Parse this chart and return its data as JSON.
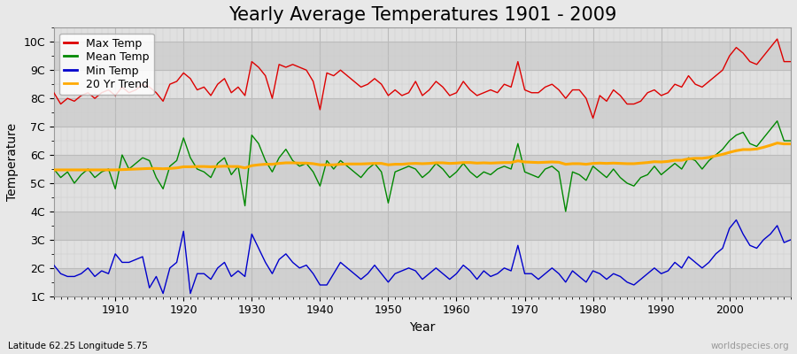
{
  "title": "Yearly Average Temperatures 1901 - 2009",
  "xlabel": "Year",
  "ylabel": "Temperature",
  "lat_lon_label": "Latitude 62.25 Longitude 5.75",
  "watermark": "worldspecies.org",
  "years": [
    1901,
    1902,
    1903,
    1904,
    1905,
    1906,
    1907,
    1908,
    1909,
    1910,
    1911,
    1912,
    1913,
    1914,
    1915,
    1916,
    1917,
    1918,
    1919,
    1920,
    1921,
    1922,
    1923,
    1924,
    1925,
    1926,
    1927,
    1928,
    1929,
    1930,
    1931,
    1932,
    1933,
    1934,
    1935,
    1936,
    1937,
    1938,
    1939,
    1940,
    1941,
    1942,
    1943,
    1944,
    1945,
    1946,
    1947,
    1948,
    1949,
    1950,
    1951,
    1952,
    1953,
    1954,
    1955,
    1956,
    1957,
    1958,
    1959,
    1960,
    1961,
    1962,
    1963,
    1964,
    1965,
    1966,
    1967,
    1968,
    1969,
    1970,
    1971,
    1972,
    1973,
    1974,
    1975,
    1976,
    1977,
    1978,
    1979,
    1980,
    1981,
    1982,
    1983,
    1984,
    1985,
    1986,
    1987,
    1988,
    1989,
    1990,
    1991,
    1992,
    1993,
    1994,
    1995,
    1996,
    1997,
    1998,
    1999,
    2000,
    2001,
    2002,
    2003,
    2004,
    2005,
    2006,
    2007,
    2008,
    2009
  ],
  "max_temp": [
    8.2,
    7.8,
    8.0,
    7.9,
    8.1,
    8.2,
    8.0,
    8.2,
    8.3,
    8.1,
    8.4,
    8.2,
    8.3,
    8.5,
    8.4,
    8.2,
    7.9,
    8.5,
    8.6,
    8.9,
    8.7,
    8.3,
    8.4,
    8.1,
    8.5,
    8.7,
    8.2,
    8.4,
    8.1,
    9.3,
    9.1,
    8.8,
    8.0,
    9.2,
    9.1,
    9.2,
    9.1,
    9.0,
    8.6,
    7.6,
    8.9,
    8.8,
    9.0,
    8.8,
    8.6,
    8.4,
    8.5,
    8.7,
    8.5,
    8.1,
    8.3,
    8.1,
    8.2,
    8.6,
    8.1,
    8.3,
    8.6,
    8.4,
    8.1,
    8.2,
    8.6,
    8.3,
    8.1,
    8.2,
    8.3,
    8.2,
    8.5,
    8.4,
    9.3,
    8.3,
    8.2,
    8.2,
    8.4,
    8.5,
    8.3,
    8.0,
    8.3,
    8.3,
    8.0,
    7.3,
    8.1,
    7.9,
    8.3,
    8.1,
    7.8,
    7.8,
    7.9,
    8.2,
    8.3,
    8.1,
    8.2,
    8.5,
    8.4,
    8.8,
    8.5,
    8.4,
    8.6,
    8.8,
    9.0,
    9.5,
    9.8,
    9.6,
    9.3,
    9.2,
    9.5,
    9.8,
    10.1,
    9.3,
    9.3
  ],
  "mean_temp": [
    5.5,
    5.2,
    5.4,
    5.0,
    5.3,
    5.5,
    5.2,
    5.4,
    5.5,
    4.8,
    6.0,
    5.5,
    5.7,
    5.9,
    5.8,
    5.2,
    4.8,
    5.6,
    5.8,
    6.6,
    5.9,
    5.5,
    5.4,
    5.2,
    5.7,
    5.9,
    5.3,
    5.6,
    4.2,
    6.7,
    6.4,
    5.8,
    5.4,
    5.9,
    6.2,
    5.8,
    5.6,
    5.7,
    5.4,
    4.9,
    5.8,
    5.5,
    5.8,
    5.6,
    5.4,
    5.2,
    5.5,
    5.7,
    5.4,
    4.3,
    5.4,
    5.5,
    5.6,
    5.5,
    5.2,
    5.4,
    5.7,
    5.5,
    5.2,
    5.4,
    5.7,
    5.4,
    5.2,
    5.4,
    5.3,
    5.5,
    5.6,
    5.5,
    6.4,
    5.4,
    5.3,
    5.2,
    5.5,
    5.6,
    5.4,
    4.0,
    5.4,
    5.3,
    5.1,
    5.6,
    5.4,
    5.2,
    5.5,
    5.2,
    5.0,
    4.9,
    5.2,
    5.3,
    5.6,
    5.3,
    5.5,
    5.7,
    5.5,
    5.9,
    5.8,
    5.5,
    5.8,
    6.0,
    6.2,
    6.5,
    6.7,
    6.8,
    6.4,
    6.3,
    6.6,
    6.9,
    7.2,
    6.5,
    6.5
  ],
  "min_temp": [
    2.1,
    1.8,
    1.7,
    1.7,
    1.8,
    2.0,
    1.7,
    1.9,
    1.8,
    2.5,
    2.2,
    2.2,
    2.3,
    2.4,
    1.3,
    1.7,
    1.1,
    2.0,
    2.2,
    3.3,
    1.1,
    1.8,
    1.8,
    1.6,
    2.0,
    2.2,
    1.7,
    1.9,
    1.7,
    3.2,
    2.7,
    2.2,
    1.8,
    2.3,
    2.5,
    2.2,
    2.0,
    2.1,
    1.8,
    1.4,
    1.4,
    1.8,
    2.2,
    2.0,
    1.8,
    1.6,
    1.8,
    2.1,
    1.8,
    1.5,
    1.8,
    1.9,
    2.0,
    1.9,
    1.6,
    1.8,
    2.0,
    1.8,
    1.6,
    1.8,
    2.1,
    1.9,
    1.6,
    1.9,
    1.7,
    1.8,
    2.0,
    1.9,
    2.8,
    1.8,
    1.8,
    1.6,
    1.8,
    2.0,
    1.8,
    1.5,
    1.9,
    1.7,
    1.5,
    1.9,
    1.8,
    1.6,
    1.8,
    1.7,
    1.5,
    1.4,
    1.6,
    1.8,
    2.0,
    1.8,
    1.9,
    2.2,
    2.0,
    2.4,
    2.2,
    2.0,
    2.2,
    2.5,
    2.7,
    3.4,
    3.7,
    3.2,
    2.8,
    2.7,
    3.0,
    3.2,
    3.5,
    2.9,
    3.0
  ],
  "trend_vals": [
    5.47,
    5.47,
    5.47,
    5.47,
    5.47,
    5.47,
    5.47,
    5.47,
    5.47,
    5.47,
    5.48,
    5.49,
    5.5,
    5.51,
    5.52,
    5.52,
    5.51,
    5.52,
    5.54,
    5.58,
    5.58,
    5.59,
    5.59,
    5.58,
    5.59,
    5.6,
    5.59,
    5.59,
    5.54,
    5.62,
    5.65,
    5.67,
    5.67,
    5.7,
    5.72,
    5.72,
    5.71,
    5.71,
    5.69,
    5.65,
    5.65,
    5.65,
    5.67,
    5.68,
    5.68,
    5.68,
    5.69,
    5.7,
    5.7,
    5.65,
    5.67,
    5.67,
    5.69,
    5.7,
    5.69,
    5.7,
    5.72,
    5.72,
    5.7,
    5.71,
    5.73,
    5.73,
    5.71,
    5.72,
    5.71,
    5.72,
    5.73,
    5.73,
    5.79,
    5.75,
    5.74,
    5.73,
    5.74,
    5.75,
    5.74,
    5.67,
    5.69,
    5.69,
    5.67,
    5.7,
    5.71,
    5.7,
    5.71,
    5.7,
    5.69,
    5.69,
    5.71,
    5.73,
    5.76,
    5.75,
    5.77,
    5.81,
    5.81,
    5.86,
    5.88,
    5.88,
    5.91,
    5.97,
    6.02,
    6.09,
    6.15,
    6.19,
    6.19,
    6.21,
    6.27,
    6.34,
    6.42,
    6.39,
    6.39
  ],
  "colors": {
    "max": "#dd0000",
    "mean": "#008800",
    "min": "#0000cc",
    "trend": "#ffaa00",
    "fig_bg": "#e8e8e8",
    "plot_bg_light": "#e0e0e0",
    "plot_bg_dark": "#d0d0d0",
    "grid_major": "#bbbbbb",
    "grid_minor": "#cccccc"
  },
  "ylim": [
    1.0,
    10.5
  ],
  "yticks": [
    1,
    2,
    3,
    4,
    5,
    6,
    7,
    8,
    9,
    10
  ],
  "ytick_labels": [
    "1C",
    "2C",
    "3C",
    "4C",
    "5C",
    "6C",
    "7C",
    "8C",
    "9C",
    "10C"
  ],
  "xlim": [
    1901,
    2009
  ],
  "xticks": [
    1910,
    1920,
    1930,
    1940,
    1950,
    1960,
    1970,
    1980,
    1990,
    2000
  ],
  "legend": {
    "max_label": "Max Temp",
    "mean_label": "Mean Temp",
    "min_label": "Min Temp",
    "trend_label": "20 Yr Trend"
  },
  "title_fontsize": 15,
  "axis_label_fontsize": 10,
  "tick_fontsize": 9,
  "legend_fontsize": 9,
  "linewidth": 1.0,
  "trend_linewidth": 2.2
}
